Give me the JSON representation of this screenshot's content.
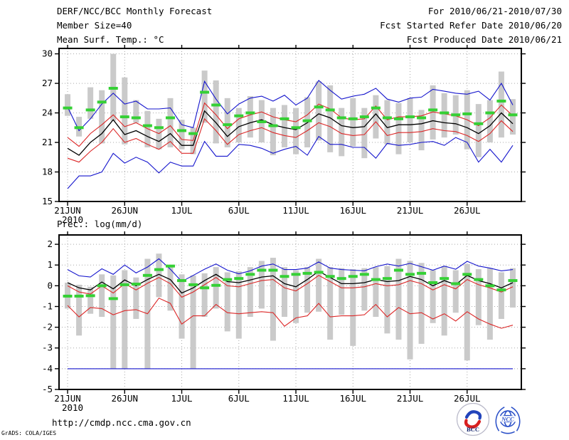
{
  "header": {
    "title": "DERF/NCC/BCC Monthly Forecast",
    "member_size": "Member Size=40",
    "for_range": "For 2010/06/21-2010/07/30",
    "refer_date": "Fcst Started Refer Date 2010/06/20",
    "produced_date": "Fcst Produced Date 2010/06/21"
  },
  "footer": {
    "url": "http://cmdp.ncc.cma.gov.cn",
    "credit": "GrADS: COLA/IGES",
    "bcc_label": "BCC",
    "ncc_label": "NCC"
  },
  "colors": {
    "max_min_line": "#1515cd",
    "std_line": "#dc2828",
    "ensemble_mean_line": "#000000",
    "climatology_dash": "#35d035",
    "member_range_bar": "#cacaca",
    "grid": "#a8a8a8",
    "frame": "#000000"
  },
  "chart_data": [
    {
      "type": "line",
      "title": "Mean Surf. Temp.: °C",
      "x_start_label": "21JUN",
      "x_sub_label": "2010",
      "x_tick_labels": [
        "21JUN",
        "26JUN",
        "1JUL",
        "6JUL",
        "11JUL",
        "16JUL",
        "21JUL",
        "26JUL"
      ],
      "x_tick_index": [
        0,
        5,
        10,
        15,
        20,
        25,
        30,
        35
      ],
      "n_points": 40,
      "ylim": [
        15,
        30.55
      ],
      "yticks": [
        15,
        18,
        21,
        24,
        27,
        30
      ],
      "grid": true,
      "legend": "none",
      "series": [
        {
          "name": "member-max",
          "color": "#1515cd",
          "values": [
            24.6,
            22.2,
            23.4,
            24.9,
            26.0,
            24.9,
            25.2,
            24.4,
            24.4,
            24.5,
            22.8,
            22.5,
            27.2,
            25.4,
            23.9,
            24.9,
            25.5,
            25.7,
            25.2,
            25.8,
            24.8,
            25.5,
            27.3,
            26.3,
            25.4,
            25.7,
            25.9,
            26.5,
            25.4,
            25.1,
            25.5,
            25.6,
            26.4,
            26.2,
            26.0,
            25.9,
            26.2,
            25.3,
            27.0,
            24.8
          ]
        },
        {
          "name": "mean-plus-sd",
          "color": "#dc2828",
          "values": [
            21.5,
            20.6,
            21.9,
            22.8,
            23.8,
            22.6,
            23.0,
            22.4,
            21.9,
            22.7,
            21.3,
            21.2,
            25.0,
            23.8,
            22.4,
            23.4,
            23.8,
            24.1,
            23.6,
            23.3,
            23.1,
            23.8,
            24.9,
            24.4,
            23.5,
            23.3,
            23.4,
            24.7,
            23.3,
            23.6,
            23.6,
            23.7,
            24.1,
            23.9,
            23.7,
            23.3,
            22.7,
            23.5,
            24.8,
            23.7
          ]
        },
        {
          "name": "ensemble-mean",
          "color": "#000000",
          "values": [
            20.4,
            19.7,
            21.0,
            21.9,
            23.3,
            21.8,
            22.2,
            21.6,
            21.1,
            21.9,
            20.7,
            20.7,
            24.2,
            23.0,
            21.6,
            22.6,
            23.0,
            23.3,
            22.8,
            22.5,
            22.3,
            23.0,
            23.9,
            23.5,
            22.7,
            22.5,
            22.6,
            23.9,
            22.5,
            22.8,
            22.8,
            22.9,
            23.2,
            23.0,
            22.9,
            22.5,
            21.9,
            22.7,
            24.0,
            22.9
          ]
        },
        {
          "name": "mean-minus-sd",
          "color": "#dc2828",
          "values": [
            19.4,
            19.0,
            20.1,
            21.0,
            22.4,
            21.0,
            21.4,
            20.8,
            20.3,
            21.1,
            19.9,
            19.9,
            23.4,
            22.2,
            20.8,
            21.8,
            22.2,
            22.5,
            22.0,
            21.7,
            21.5,
            22.2,
            23.0,
            22.6,
            21.9,
            21.7,
            21.8,
            23.1,
            21.7,
            22.0,
            22.0,
            22.1,
            22.4,
            22.2,
            22.1,
            21.7,
            21.1,
            21.9,
            23.2,
            22.1
          ]
        },
        {
          "name": "member-min",
          "color": "#1515cd",
          "values": [
            16.3,
            17.6,
            17.6,
            18.0,
            19.9,
            18.9,
            19.5,
            19.0,
            17.9,
            19.0,
            18.6,
            18.6,
            21.1,
            19.6,
            19.6,
            20.8,
            20.7,
            20.4,
            19.9,
            20.3,
            20.6,
            19.7,
            21.6,
            20.8,
            20.8,
            20.5,
            20.5,
            19.4,
            20.9,
            20.7,
            20.8,
            21.0,
            21.1,
            20.7,
            21.5,
            21.0,
            19.0,
            20.3,
            19.0,
            20.7
          ]
        }
      ],
      "climatology_dashes": [
        24.5,
        22.5,
        24.3,
        25.1,
        26.5,
        23.6,
        23.5,
        22.7,
        22.5,
        23.5,
        22.2,
        21.9,
        26.1,
        24.8,
        22.8,
        23.7,
        24.0,
        23.1,
        22.7,
        23.4,
        22.5,
        23.2,
        24.6,
        24.3,
        23.5,
        23.4,
        23.6,
        24.5,
        23.5,
        23.4,
        23.6,
        23.5,
        24.3,
        24.0,
        23.8,
        23.9,
        22.9,
        24.0,
        25.2,
        23.8
      ],
      "range_bars": {
        "lo": [
          23.7,
          21.6,
          23.4,
          20.9,
          23.2,
          20.8,
          23.0,
          20.5,
          20.3,
          20.5,
          20.3,
          19.8,
          23.0,
          20.9,
          20.5,
          21.0,
          21.5,
          21.0,
          19.7,
          20.5,
          19.8,
          20.5,
          21.2,
          20.0,
          19.6,
          20.6,
          19.4,
          21.4,
          20.8,
          19.8,
          21.0,
          20.2,
          21.3,
          21.5,
          21.8,
          20.3,
          19.5,
          21.0,
          21.5,
          21.8
        ],
        "hi": [
          25.9,
          23.6,
          26.6,
          26.3,
          30.0,
          27.6,
          25.3,
          24.2,
          23.4,
          25.5,
          23.3,
          22.5,
          28.3,
          27.3,
          25.5,
          24.5,
          25.7,
          25.3,
          24.5,
          24.8,
          24.5,
          25.6,
          27.2,
          26.8,
          24.5,
          25.5,
          24.5,
          25.8,
          25.3,
          25.0,
          25.5,
          24.3,
          26.8,
          26.0,
          25.8,
          26.3,
          24.9,
          25.3,
          28.2,
          25.4
        ]
      }
    },
    {
      "type": "line",
      "title": "Prec.: log(mm/d)",
      "x_start_label": "21JUN",
      "x_sub_label": "2010",
      "x_tick_labels": [
        "21JUN",
        "26JUN",
        "1JUL",
        "6JUL",
        "11JUL",
        "16JUL",
        "21JUL",
        "26JUL"
      ],
      "x_tick_index": [
        0,
        5,
        10,
        15,
        20,
        25,
        30,
        35
      ],
      "n_points": 40,
      "ylim": [
        -5,
        2.45
      ],
      "yticks": [
        -5,
        -4,
        -3,
        -2,
        -1,
        0,
        1,
        2
      ],
      "grid": true,
      "legend": "none",
      "series": [
        {
          "name": "member-max",
          "color": "#1515cd",
          "values": [
            0.78,
            0.48,
            0.42,
            0.82,
            0.55,
            1.0,
            0.62,
            0.9,
            1.3,
            0.8,
            0.2,
            0.5,
            0.8,
            1.05,
            0.75,
            0.58,
            0.72,
            0.95,
            1.05,
            0.78,
            0.78,
            0.85,
            1.15,
            0.85,
            0.78,
            0.75,
            0.72,
            0.92,
            1.05,
            0.95,
            1.08,
            0.92,
            0.75,
            0.95,
            0.8,
            1.18,
            0.95,
            0.85,
            0.72,
            0.78
          ]
        },
        {
          "name": "mean-plus-sd",
          "color": "#dc2828",
          "values": [
            0.0,
            -0.3,
            -0.4,
            0.0,
            -0.35,
            0.1,
            -0.2,
            0.12,
            0.4,
            0.1,
            -0.55,
            -0.3,
            0.05,
            0.4,
            0.0,
            -0.05,
            0.1,
            0.25,
            0.3,
            -0.1,
            -0.25,
            0.1,
            0.5,
            0.2,
            -0.1,
            -0.1,
            -0.05,
            0.1,
            0.0,
            0.05,
            0.25,
            0.1,
            -0.2,
            0.05,
            -0.15,
            0.3,
            0.05,
            -0.1,
            -0.3,
            -0.05
          ]
        },
        {
          "name": "ensemble-mean",
          "color": "#000000",
          "values": [
            0.15,
            -0.1,
            -0.2,
            0.18,
            -0.15,
            0.28,
            0.0,
            0.3,
            0.55,
            0.3,
            -0.35,
            -0.1,
            0.25,
            0.55,
            0.2,
            0.15,
            0.28,
            0.42,
            0.48,
            0.1,
            -0.05,
            0.3,
            0.7,
            0.4,
            0.1,
            0.1,
            0.15,
            0.3,
            0.2,
            0.25,
            0.45,
            0.3,
            0.0,
            0.25,
            0.05,
            0.5,
            0.25,
            0.1,
            -0.1,
            0.15
          ]
        },
        {
          "name": "mean-minus-sd",
          "color": "#dc2828",
          "values": [
            -0.95,
            -1.5,
            -1.05,
            -1.1,
            -1.4,
            -1.2,
            -1.15,
            -1.35,
            -0.6,
            -0.85,
            -1.85,
            -1.45,
            -1.45,
            -0.9,
            -1.3,
            -1.35,
            -1.3,
            -1.25,
            -1.3,
            -1.95,
            -1.55,
            -1.45,
            -0.85,
            -1.5,
            -1.45,
            -1.45,
            -1.4,
            -0.9,
            -1.5,
            -1.05,
            -1.35,
            -1.3,
            -1.6,
            -1.35,
            -1.7,
            -1.25,
            -1.6,
            -1.85,
            -2.05,
            -1.9
          ]
        },
        {
          "name": "member-min",
          "color": "#1515cd",
          "values": [
            -4.0,
            -4.0,
            -4.0,
            -4.0,
            -4.0,
            -4.0,
            -4.0,
            -4.0,
            -4.0,
            -4.0,
            -4.0,
            -4.0,
            -4.0,
            -4.0,
            -4.0,
            -4.0,
            -4.0,
            -4.0,
            -4.0,
            -4.0,
            -4.0,
            -4.0,
            -4.0,
            -4.0,
            -4.0,
            -4.0,
            -4.0,
            -4.0,
            -4.0,
            -4.0,
            -4.0,
            -4.0,
            -4.0,
            -4.0,
            -4.0,
            -4.0,
            -4.0,
            -4.0,
            -4.0,
            -4.0
          ]
        }
      ],
      "climatology_dashes": [
        -0.5,
        -0.5,
        -0.48,
        0.0,
        -0.62,
        0.05,
        0.08,
        0.5,
        0.78,
        0.95,
        0.25,
        0.05,
        -0.1,
        0.02,
        0.3,
        0.35,
        0.55,
        0.75,
        0.75,
        0.45,
        0.55,
        0.6,
        0.65,
        0.45,
        0.35,
        0.45,
        0.55,
        0.3,
        0.35,
        0.75,
        0.55,
        0.6,
        0.15,
        0.35,
        0.1,
        0.55,
        0.3,
        0.0,
        -0.2,
        0.25
      ],
      "range_bars": {
        "lo": [
          -1.1,
          -2.4,
          -1.35,
          -1.5,
          -4.0,
          -4.0,
          -1.6,
          -4.0,
          -0.55,
          -1.2,
          -2.55,
          -4.0,
          -1.5,
          -1.1,
          -2.2,
          -2.55,
          -1.5,
          -1.1,
          -2.65,
          -1.5,
          -1.8,
          -1.3,
          -1.25,
          -2.6,
          -1.4,
          -2.9,
          -1.2,
          -1.5,
          -2.3,
          -2.6,
          -3.55,
          -2.8,
          -1.8,
          -2.4,
          -1.3,
          -3.6,
          -1.9,
          -2.6,
          -1.6,
          -1.05
        ],
        "hi": [
          0.15,
          0.05,
          -0.05,
          0.55,
          0.5,
          0.75,
          0.4,
          1.3,
          1.55,
          1.0,
          0.55,
          0.5,
          0.6,
          0.9,
          0.65,
          0.7,
          0.9,
          1.2,
          1.35,
          0.9,
          0.75,
          0.9,
          1.3,
          0.9,
          0.85,
          0.8,
          0.85,
          0.9,
          0.95,
          1.3,
          1.2,
          1.1,
          0.75,
          0.95,
          0.75,
          1.05,
          0.8,
          0.85,
          0.65,
          0.85
        ]
      }
    }
  ]
}
